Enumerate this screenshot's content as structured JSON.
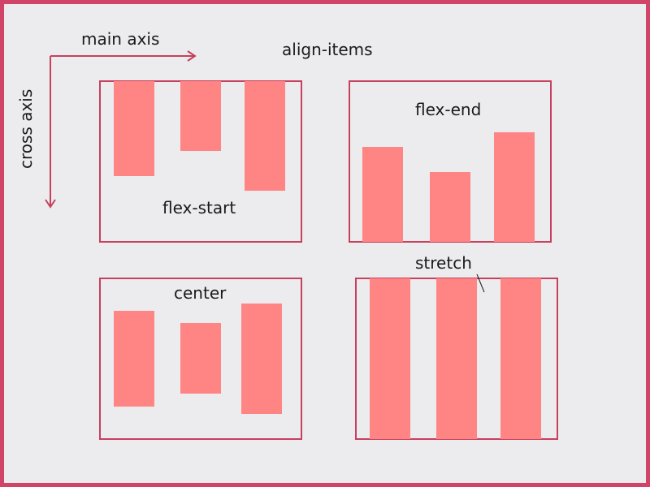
{
  "title": "align-items",
  "axes": {
    "main": "main axis",
    "cross": "cross axis"
  },
  "panels": {
    "flex_start": "flex-start",
    "flex_end": "flex-end",
    "center": "center",
    "stretch": "stretch"
  },
  "colors": {
    "border": "#c7405e",
    "item": "#ff8484",
    "background": "#ececee",
    "frame": "#d24467"
  }
}
